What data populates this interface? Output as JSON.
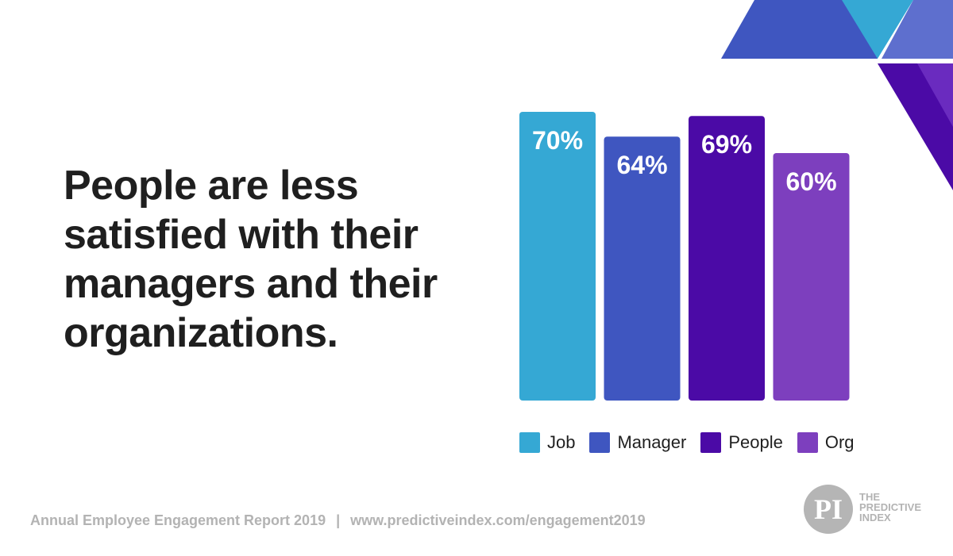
{
  "headline": {
    "lines": [
      "People are less",
      "satisfied with their",
      "managers and their",
      "organizations."
    ]
  },
  "chart_data": {
    "type": "bar",
    "categories": [
      "Job",
      "Manager",
      "People",
      "Org"
    ],
    "values": [
      70,
      64,
      69,
      60
    ],
    "value_labels": [
      "70%",
      "64%",
      "69%",
      "60%"
    ],
    "colors": [
      "#35a8d4",
      "#3f56c0",
      "#4b0aa6",
      "#7d3fbe"
    ],
    "title": "",
    "xlabel": "",
    "ylabel": "",
    "legend_position": "bottom",
    "grid": false,
    "legend": [
      {
        "label": "Job",
        "color": "#35a8d4"
      },
      {
        "label": "Manager",
        "color": "#3f56c0"
      },
      {
        "label": "People",
        "color": "#4b0aa6"
      },
      {
        "label": "Org",
        "color": "#7d3fbe"
      }
    ]
  },
  "footer": {
    "report": "Annual Employee Engagement Report 2019",
    "separator": "|",
    "url": "www.predictiveindex.com/engagement2019"
  },
  "logo": {
    "mark": "PI",
    "line1": "THE",
    "line2": "PREDICTIVE",
    "line3": "INDEX"
  },
  "decoration": {
    "colors": [
      "#3f56c0",
      "#35a8d4",
      "#5e6fce",
      "#4b0aa6",
      "#6a2bbf"
    ]
  }
}
